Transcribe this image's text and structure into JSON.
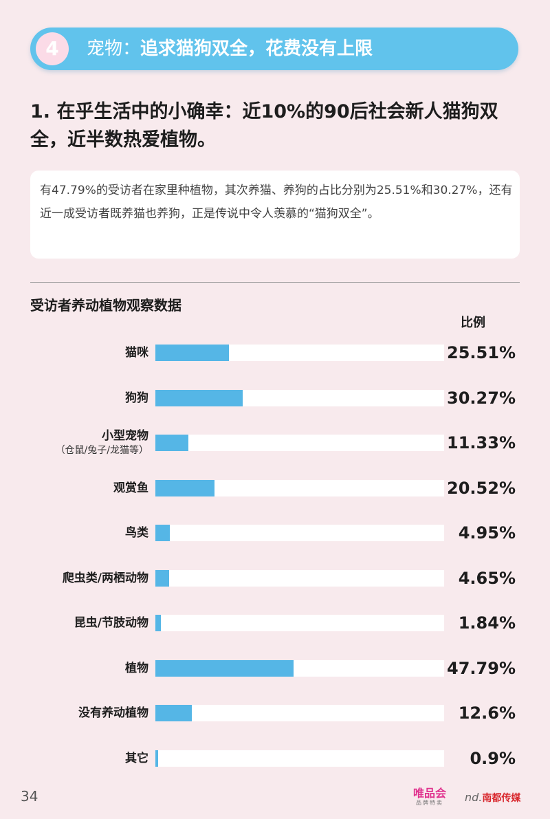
{
  "header": {
    "number": "4",
    "prefix": "宠物：",
    "title": "追求猫狗双全，花费没有上限"
  },
  "heading": "1. 在乎生活中的小确幸：近10%的90后社会新人猫狗双全，近半数热爱植物。",
  "description": "有47.79%的受访者在家里种植物，其次养猫、养狗的占比分别为25.51%和30.27%，还有近一成受访者既养猫也养狗，正是传说中令人羡慕的“猫狗双全”。",
  "chart_data": {
    "type": "bar",
    "orientation": "horizontal",
    "title": "受访者养动植物观察数据",
    "value_header": "比例",
    "categories": [
      "猫咪",
      "狗狗",
      "小型宠物",
      "观赏鱼",
      "鸟类",
      "爬虫类/两栖动物",
      "昆虫/节肢动物",
      "植物",
      "没有养动植物",
      "其它"
    ],
    "category_notes": [
      "",
      "",
      "（仓鼠/兔子/龙猫等）",
      "",
      "",
      "",
      "",
      "",
      "",
      ""
    ],
    "values": [
      25.51,
      30.27,
      11.33,
      20.52,
      4.95,
      4.65,
      1.84,
      47.79,
      12.6,
      0.9
    ],
    "value_labels": [
      "25.51%",
      "30.27%",
      "11.33%",
      "20.52%",
      "4.95%",
      "4.65%",
      "1.84%",
      "47.79%",
      "12.6%",
      "0.9%"
    ],
    "xlim": [
      0,
      100
    ],
    "colors": {
      "bar": "#55b6e6",
      "track": "#ffffff"
    },
    "grid": false,
    "legend": "none"
  },
  "footer": {
    "page_number": "34",
    "logo_vip": "唯品会",
    "logo_vip_sub": "品牌特卖",
    "logo_nd_mark": "nd.",
    "logo_nd": "南都传媒"
  }
}
